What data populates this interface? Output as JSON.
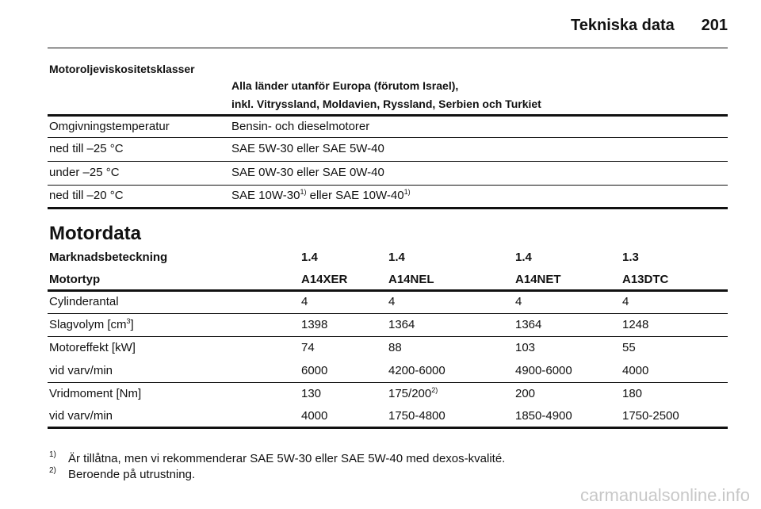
{
  "header": {
    "section": "Tekniska data",
    "page": "201"
  },
  "oil": {
    "title": "Motoroljeviskositetsklasser",
    "region": [
      "Alla länder utanför Europa (förutom Israel),",
      "inkl. Vitryssland, Moldavien, Ryssland, Serbien och Turkiet"
    ],
    "columns": [
      "Omgivningstemperatur",
      "Bensin- och dieselmotorer"
    ],
    "rows": [
      [
        [
          "ned till –25 °C"
        ],
        [
          "SAE 5W-30 eller SAE 5W-40"
        ]
      ],
      [
        [
          "under –25 °C"
        ],
        [
          "SAE 0W-30 eller SAE 0W-40"
        ]
      ],
      [
        [
          "ned till –20 °C"
        ],
        [
          "SAE 10W-30",
          {
            "sup": "1)"
          },
          " eller SAE 10W-40",
          {
            "sup": "1)"
          }
        ]
      ]
    ]
  },
  "engine": {
    "title": "Motordata",
    "header_rows": [
      [
        "Marknadsbeteckning",
        "1.4",
        "1.4",
        "1.4",
        "1.3"
      ],
      [
        "Motortyp",
        "A14XER",
        "A14NEL",
        "A14NET",
        "A13DTC"
      ]
    ],
    "groups": [
      [
        [
          [
            "Cylinderantal"
          ],
          [
            "4"
          ],
          [
            "4"
          ],
          [
            "4"
          ],
          [
            "4"
          ]
        ]
      ],
      [
        [
          [
            "Slagvolym [cm",
            {
              "sup": "3"
            },
            "]"
          ],
          [
            "1398"
          ],
          [
            "1364"
          ],
          [
            "1364"
          ],
          [
            "1248"
          ]
        ]
      ],
      [
        [
          [
            "Motoreffekt [kW]"
          ],
          [
            "74"
          ],
          [
            "88"
          ],
          [
            "103"
          ],
          [
            "55"
          ]
        ],
        [
          [
            "vid varv/min"
          ],
          [
            "6000"
          ],
          [
            "4200-6000"
          ],
          [
            "4900-6000"
          ],
          [
            "4000"
          ]
        ]
      ],
      [
        [
          [
            "Vridmoment [Nm]"
          ],
          [
            "130"
          ],
          [
            "175/200",
            {
              "sup": "2)"
            }
          ],
          [
            "200"
          ],
          [
            "180"
          ]
        ],
        [
          [
            "vid varv/min"
          ],
          [
            "4000"
          ],
          [
            "1750-4800"
          ],
          [
            "1850-4900"
          ],
          [
            "1750-2500"
          ]
        ]
      ]
    ]
  },
  "footnotes": [
    {
      "mark": "1)",
      "text": "Är tillåtna, men vi rekommenderar SAE 5W-30 eller SAE 5W-40 med dexos-kvalité."
    },
    {
      "mark": "2)",
      "text": "Beroende på utrustning."
    }
  ],
  "watermark": "carmanualsonline.info"
}
